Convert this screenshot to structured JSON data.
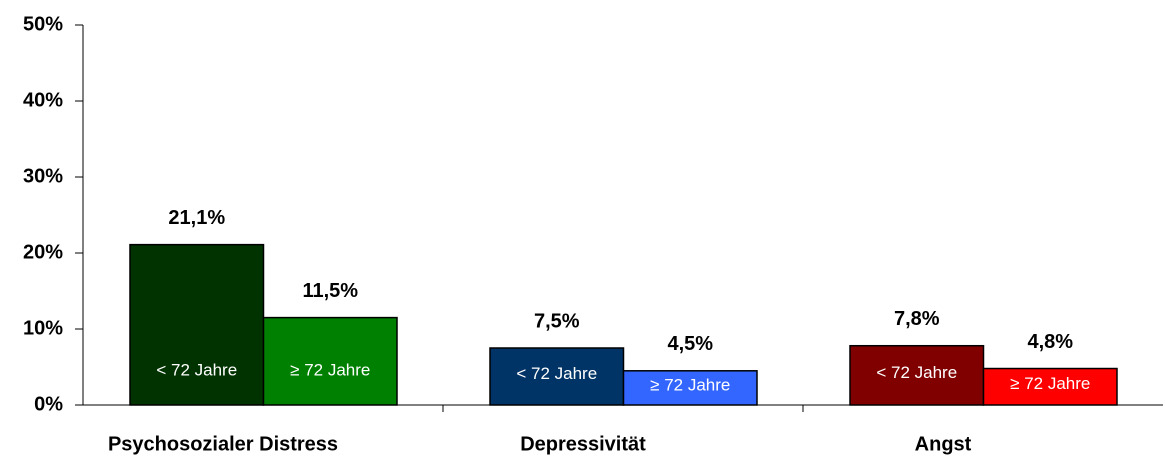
{
  "chart_data": {
    "type": "bar",
    "categories": [
      "Psychosozialer Distress",
      "Depressivität",
      "Angst"
    ],
    "series": [
      {
        "name": "< 72 Jahre",
        "colors": [
          "#003300",
          "#003366",
          "#800000"
        ],
        "values": [
          21.1,
          7.5,
          7.8
        ],
        "value_labels": [
          "21,1%",
          "7,5%",
          "7,8%"
        ]
      },
      {
        "name": "≥ 72 Jahre",
        "colors": [
          "#008000",
          "#3366ff",
          "#ff0000"
        ],
        "values": [
          11.5,
          4.5,
          4.8
        ],
        "value_labels": [
          "11,5%",
          "4,5%",
          "4,8%"
        ]
      }
    ],
    "ylim": [
      0,
      50
    ],
    "yticks": [
      {
        "value": 0,
        "label": "0%"
      },
      {
        "value": 10,
        "label": "10%"
      },
      {
        "value": 20,
        "label": "20%"
      },
      {
        "value": 30,
        "label": "30%"
      },
      {
        "value": 40,
        "label": "40%"
      },
      {
        "value": 50,
        "label": "50%"
      }
    ],
    "grid": false
  }
}
